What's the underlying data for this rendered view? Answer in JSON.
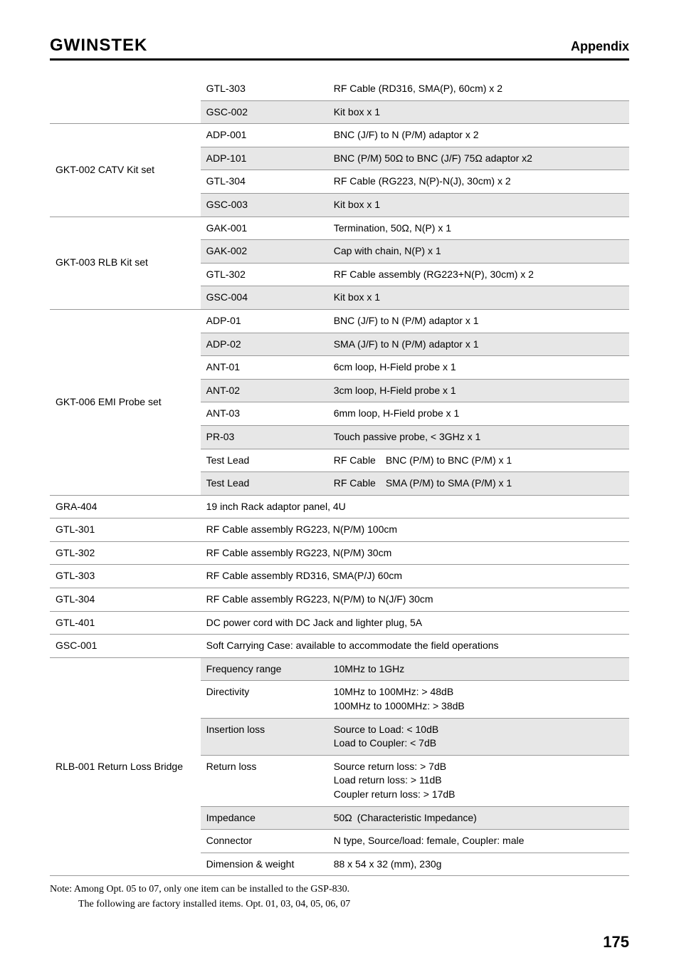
{
  "header": {
    "logo": "GWINSTEK",
    "section": "Appendix"
  },
  "rows": [
    {
      "shaded": false,
      "c1": "",
      "c2": "GTL-303",
      "c3": "RF Cable (RD316, SMA(P), 60cm) x 2"
    },
    {
      "shaded": true,
      "c1": "",
      "c2": "GSC-002",
      "c3": "Kit box x 1"
    },
    {
      "shaded": false,
      "c1": "",
      "c2": "ADP-001",
      "c3": "BNC (J/F) to N (P/M) adaptor x 2"
    },
    {
      "shaded": true,
      "c1": "GKT-002 CATV Kit set",
      "c2": "ADP-101",
      "c3": "BNC (P/M) 50Ω to BNC (J/F) 75Ω adaptor x2"
    },
    {
      "shaded": false,
      "c1": "",
      "c2": "GTL-304",
      "c3": "RF Cable (RG223, N(P)-N(J), 30cm) x 2"
    },
    {
      "shaded": true,
      "c1": "",
      "c2": "GSC-003",
      "c3": "Kit box x 1"
    },
    {
      "shaded": false,
      "c1": "",
      "c2": "GAK-001",
      "c3": "Termination, 50Ω, N(P) x 1"
    },
    {
      "shaded": true,
      "c1": "GKT-003 RLB Kit set",
      "c2": "GAK-002",
      "c3": "Cap with chain, N(P) x 1"
    },
    {
      "shaded": false,
      "c1": "",
      "c2": "GTL-302",
      "c3": "RF Cable assembly (RG223+N(P), 30cm) x 2"
    },
    {
      "shaded": true,
      "c1": "",
      "c2": "GSC-004",
      "c3": "Kit box x 1"
    },
    {
      "shaded": false,
      "c1": "",
      "c2": "ADP-01",
      "c3": "BNC (J/F) to N (P/M) adaptor x 1"
    },
    {
      "shaded": true,
      "c1": "",
      "c2": "ADP-02",
      "c3": "SMA (J/F) to N (P/M) adaptor x 1"
    },
    {
      "shaded": false,
      "c1": "",
      "c2": "ANT-01",
      "c3": "6cm loop, H-Field probe x 1"
    },
    {
      "shaded": true,
      "c1": "GKT-006 EMI Probe set",
      "c2": "ANT-02",
      "c3": "3cm loop, H-Field probe x 1"
    },
    {
      "shaded": false,
      "c1": "",
      "c2": "ANT-03",
      "c3": "6mm loop, H-Field probe x 1"
    },
    {
      "shaded": true,
      "c1": "",
      "c2": "PR-03",
      "c3": "Touch passive probe, < 3GHz x 1"
    },
    {
      "shaded": false,
      "c1": "",
      "c2": "Test Lead",
      "c3": "RF Cable BNC (P/M) to BNC (P/M) x 1"
    },
    {
      "shaded": true,
      "c1": "",
      "c2": "Test Lead",
      "c3": "RF Cable SMA (P/M) to SMA (P/M) x 1"
    },
    {
      "shaded": false,
      "c1": "GRA-404",
      "span": true,
      "c23": "19 inch Rack adaptor panel, 4U"
    },
    {
      "shaded": false,
      "c1": "GTL-301",
      "span": true,
      "c23": "RF Cable assembly RG223, N(P/M) 100cm"
    },
    {
      "shaded": false,
      "c1": "GTL-302",
      "span": true,
      "c23": "RF Cable assembly RG223, N(P/M) 30cm"
    },
    {
      "shaded": false,
      "c1": "GTL-303",
      "span": true,
      "c23": "RF Cable assembly RD316, SMA(P/J) 60cm"
    },
    {
      "shaded": false,
      "c1": "GTL-304",
      "span": true,
      "c23": "RF Cable assembly RG223, N(P/M) to N(J/F) 30cm"
    },
    {
      "shaded": false,
      "c1": "GTL-401",
      "span": true,
      "c23": "DC power cord with DC Jack and lighter plug, 5A"
    },
    {
      "shaded": false,
      "c1": "GSC-001",
      "span": true,
      "c23": "Soft Carrying Case: available to accommodate the field operations"
    },
    {
      "shaded": true,
      "c1": "",
      "c2": "Frequency range",
      "c3": "10MHz to 1GHz"
    },
    {
      "shaded": false,
      "c1": "",
      "c2": "Directivity",
      "c3": "10MHz to 100MHz: > 48dB\n100MHz to 1000MHz: > 38dB"
    },
    {
      "shaded": true,
      "c1": "",
      "c2": "Insertion loss",
      "c3": "Source to Load: < 10dB\nLoad to Coupler: < 7dB"
    },
    {
      "shaded": false,
      "c1": "RLB-001 Return Loss Bridge",
      "c2": "Return loss",
      "c3": "Source return loss: > 7dB\nLoad return loss: > 11dB\nCoupler return loss: > 17dB"
    },
    {
      "shaded": true,
      "c1": "",
      "c2": "Impedance",
      "c3": "50Ω (Characteristic Impedance)"
    },
    {
      "shaded": false,
      "c1": "",
      "c2": "Connector",
      "c3": "N type, Source/load: female, Coupler: male"
    },
    {
      "shaded": false,
      "c1": "",
      "c2": "Dimension & weight",
      "c3": "88 x 54 x 32 (mm), 230g"
    }
  ],
  "note_line1": "Note: Among Opt. 05 to 07, only one item can be installed to the GSP-830.",
  "note_line2": "The following are factory installed items. Opt. 01, 03, 04, 05, 06, 07",
  "page_number": "175"
}
